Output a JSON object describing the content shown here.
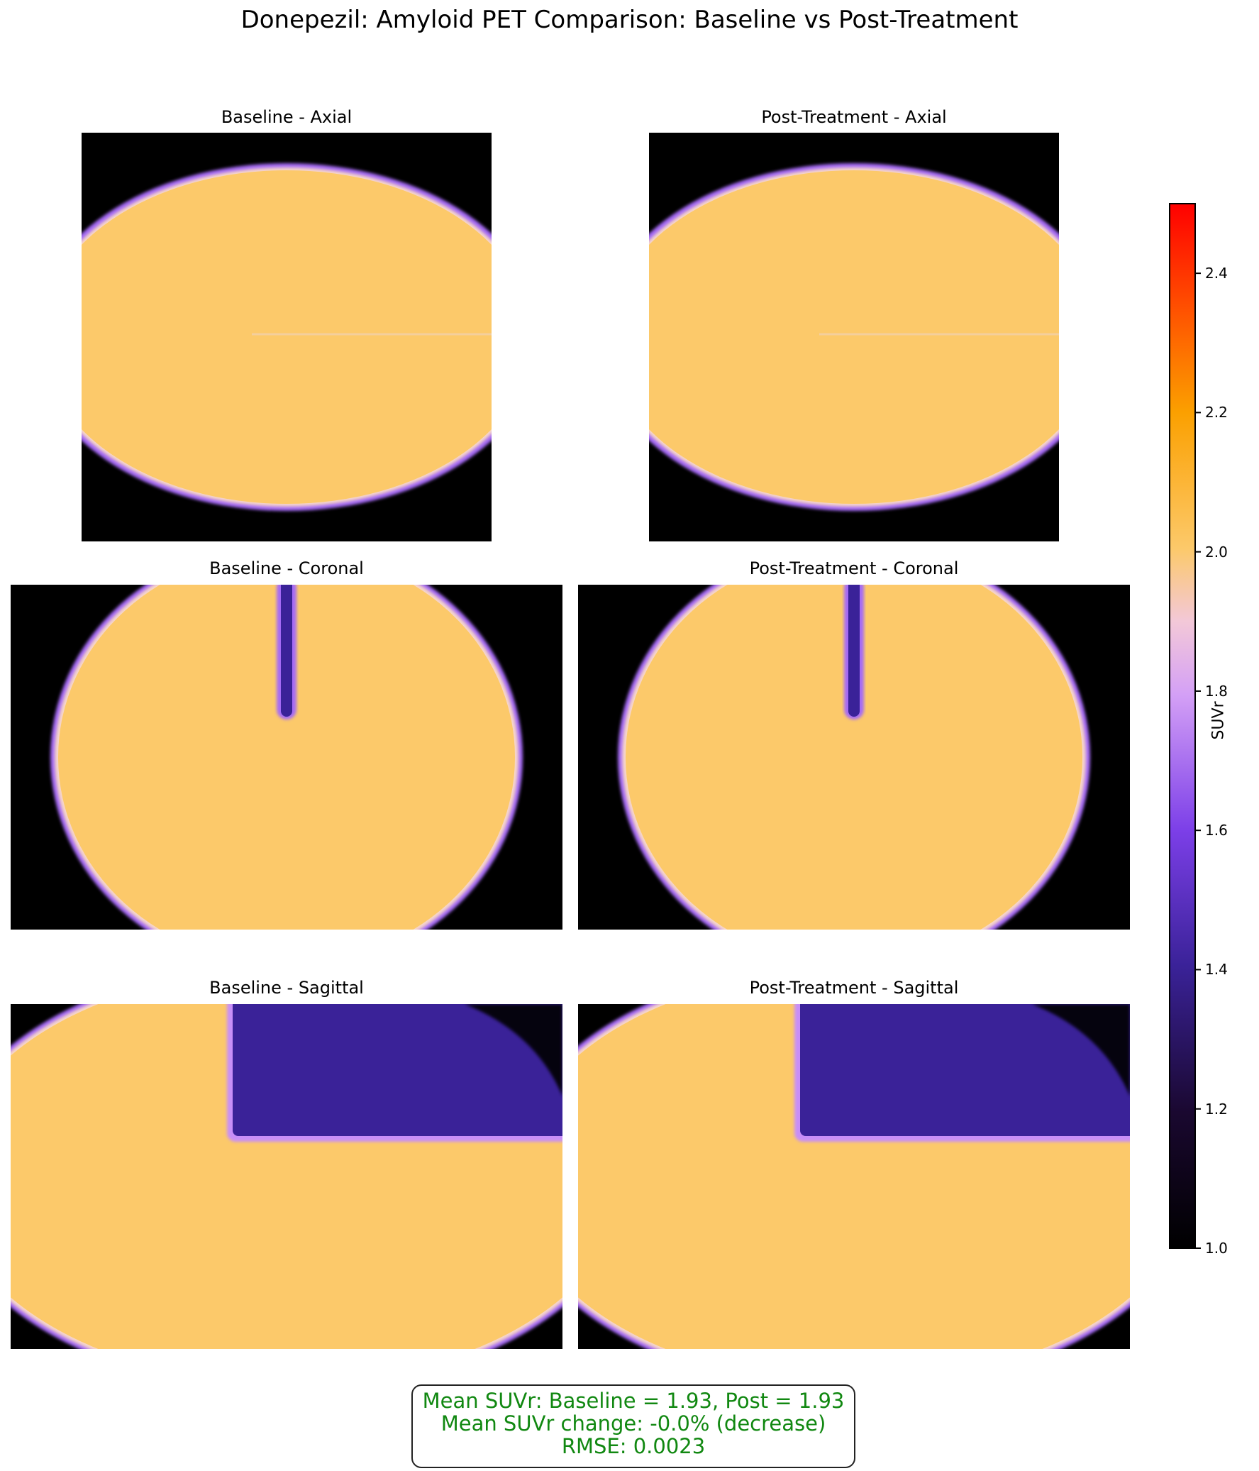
{
  "figure": {
    "title": "Donepezil: Amyloid PET Comparison: Baseline vs Post-Treatment"
  },
  "panels": [
    {
      "title": "Baseline - Axial"
    },
    {
      "title": "Post-Treatment - Axial"
    },
    {
      "title": "Baseline - Coronal"
    },
    {
      "title": "Post-Treatment - Coronal"
    },
    {
      "title": "Baseline - Sagittal"
    },
    {
      "title": "Post-Treatment - Sagittal"
    }
  ],
  "colorbar": {
    "label": "SUVr",
    "ticks": [
      "1.0",
      "1.2",
      "1.4",
      "1.6",
      "1.8",
      "2.0",
      "2.2",
      "2.4"
    ],
    "range": [
      1.0,
      2.5
    ],
    "colors": {
      "background": "#000000",
      "edge_glow": "#a56bf5",
      "tissue": "#fcc96a",
      "low_uptake_region": "#3a2298",
      "max": "#ff0000"
    }
  },
  "stats": {
    "line1": "Mean SUVr: Baseline = 1.93, Post = 1.93",
    "line2": "Mean SUVr change: -0.0% (decrease)",
    "line3": "RMSE: 0.0023"
  }
}
